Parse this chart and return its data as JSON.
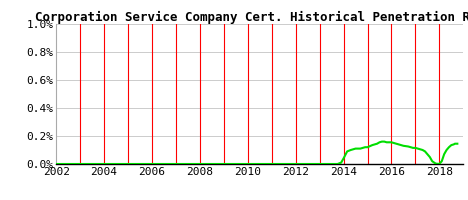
{
  "title": "Corporation Service Company Cert. Historical Penetration Rat",
  "xlim": [
    2002,
    2019
  ],
  "ylim": [
    0.0,
    1.0
  ],
  "yticks": [
    0.0,
    0.2,
    0.4,
    0.6,
    0.8,
    1.0
  ],
  "ytick_labels": [
    "0.0%",
    "0.2%",
    "0.4%",
    "0.6%",
    "0.8%",
    "1.0%"
  ],
  "xticks": [
    2002,
    2004,
    2006,
    2008,
    2010,
    2012,
    2014,
    2016,
    2018
  ],
  "red_vlines": [
    2003,
    2004,
    2005,
    2006,
    2007,
    2008,
    2009,
    2010,
    2011,
    2012,
    2013,
    2014,
    2015,
    2016,
    2017,
    2018
  ],
  "line_color": "#00dd00",
  "vline_color": "red",
  "grid_color": "#cccccc",
  "bg_color": "#ffffff",
  "title_fontsize": 9,
  "tick_fontsize": 8,
  "line_data_x": [
    2002.0,
    2002.5,
    2003.0,
    2003.5,
    2004.0,
    2004.5,
    2005.0,
    2005.5,
    2006.0,
    2006.5,
    2007.0,
    2007.5,
    2008.0,
    2008.5,
    2009.0,
    2009.5,
    2010.0,
    2010.5,
    2011.0,
    2011.5,
    2012.0,
    2012.5,
    2013.0,
    2013.5,
    2013.75,
    2013.9,
    2014.0,
    2014.15,
    2014.3,
    2014.5,
    2014.7,
    2014.9,
    2015.0,
    2015.2,
    2015.4,
    2015.5,
    2015.6,
    2015.7,
    2015.8,
    2015.85,
    2015.9,
    2016.0,
    2016.1,
    2016.2,
    2016.3,
    2016.5,
    2016.7,
    2016.8,
    2016.9,
    2017.0,
    2017.1,
    2017.2,
    2017.3,
    2017.4,
    2017.5,
    2017.6,
    2017.7,
    2017.8,
    2017.85,
    2017.9,
    2017.95,
    2018.0,
    2018.1,
    2018.2,
    2018.3,
    2018.4,
    2018.5,
    2018.6,
    2018.65,
    2018.7,
    2018.75
  ],
  "line_data_y": [
    0.0,
    0.0,
    0.0,
    0.0,
    0.0,
    0.0,
    0.0,
    0.0,
    0.0,
    0.0,
    0.0,
    0.0,
    0.0,
    0.0,
    0.0,
    0.0,
    0.0,
    0.0,
    0.0,
    0.0,
    0.0,
    0.0,
    0.0,
    0.0,
    0.0,
    0.01,
    0.04,
    0.09,
    0.1,
    0.11,
    0.11,
    0.12,
    0.12,
    0.135,
    0.145,
    0.155,
    0.16,
    0.16,
    0.155,
    0.155,
    0.155,
    0.155,
    0.15,
    0.145,
    0.14,
    0.13,
    0.125,
    0.12,
    0.115,
    0.115,
    0.11,
    0.105,
    0.1,
    0.09,
    0.07,
    0.05,
    0.02,
    0.008,
    0.003,
    0.002,
    0.001,
    0.001,
    0.02,
    0.07,
    0.1,
    0.12,
    0.135,
    0.14,
    0.145,
    0.145,
    0.145
  ]
}
